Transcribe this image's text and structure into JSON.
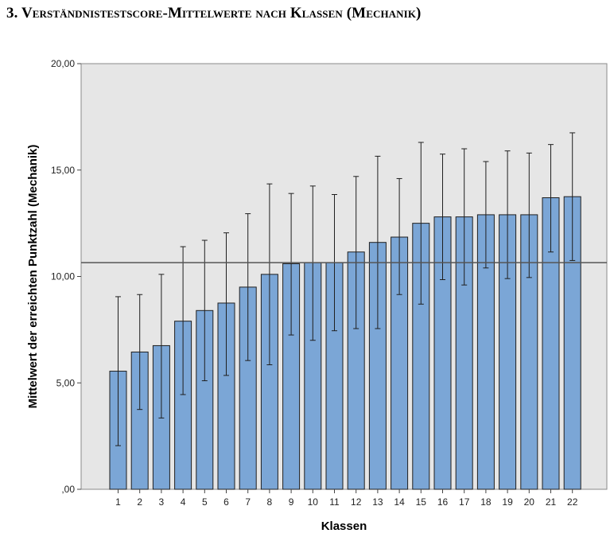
{
  "heading": "3. Verständnistestscore-Mittelwerte nach Klassen (Mechanik)",
  "chart_data": {
    "type": "bar",
    "xlabel": "Klassen",
    "ylabel": "Mittelwert der erreichten Punktzahl (Mechanik)",
    "ylim": [
      0,
      20
    ],
    "yticks": [
      0,
      5,
      10,
      15,
      20
    ],
    "ytick_labels": [
      ",00",
      "5,00",
      "10,00",
      "15,00",
      "20,00"
    ],
    "categories": [
      "1",
      "2",
      "3",
      "4",
      "5",
      "6",
      "7",
      "8",
      "9",
      "10",
      "11",
      "12",
      "13",
      "14",
      "15",
      "16",
      "17",
      "18",
      "19",
      "20",
      "21",
      "22"
    ],
    "values": [
      5.55,
      6.45,
      6.75,
      7.9,
      8.4,
      8.75,
      9.5,
      10.1,
      10.6,
      10.65,
      10.65,
      11.15,
      11.6,
      11.85,
      12.5,
      12.8,
      12.8,
      12.9,
      12.9,
      12.9,
      13.7,
      13.75
    ],
    "error_upper": [
      9.05,
      9.15,
      10.1,
      11.4,
      11.7,
      12.05,
      12.95,
      14.35,
      13.9,
      14.25,
      13.85,
      14.7,
      15.65,
      14.6,
      16.3,
      15.75,
      16.0,
      15.4,
      15.9,
      15.8,
      16.2,
      16.75
    ],
    "error_lower": [
      2.05,
      3.75,
      3.35,
      4.45,
      5.1,
      5.35,
      6.05,
      5.85,
      7.25,
      7.0,
      7.45,
      7.55,
      7.55,
      9.15,
      8.7,
      9.85,
      9.6,
      10.4,
      9.9,
      9.95,
      11.15,
      10.75
    ],
    "reference_line": 10.65,
    "grid": false,
    "colors": {
      "bar_fill": "#7ba6d6",
      "bar_stroke": "#1f1f1f",
      "plot_bg": "#e6e6e6",
      "error_bar": "#1f1f1f",
      "reference_line": "#555555"
    }
  }
}
